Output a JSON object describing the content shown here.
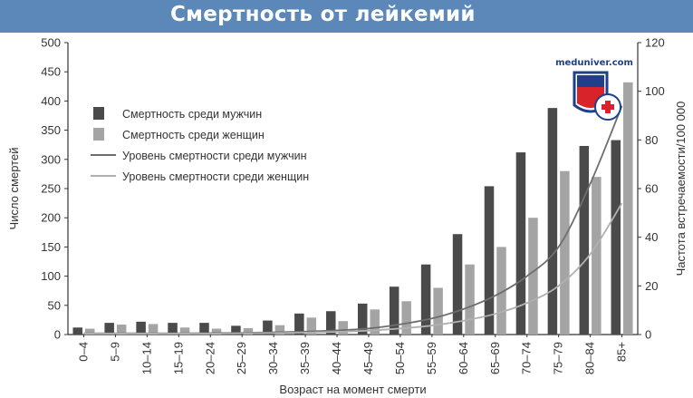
{
  "header": {
    "title": "Смертность от лейкемий"
  },
  "watermark": {
    "text": "meduniver.com"
  },
  "colors": {
    "banner": "#5b87b9",
    "men_bar": "#4a4a4a",
    "women_bar": "#a4a4a4",
    "men_line": "#6e6e6e",
    "women_line": "#b0b0b0"
  },
  "chart_data": {
    "type": "bar",
    "title": "",
    "xlabel": "Возраст на момент смерти",
    "ylabel": "Число смертей",
    "y2label": "Частота встречаемости/100 000",
    "ylim": [
      0,
      500
    ],
    "y2lim": [
      0,
      120
    ],
    "yticks": [
      "0",
      "50",
      "100",
      "150",
      "200",
      "250",
      "300",
      "350",
      "400",
      "450",
      "500"
    ],
    "y2ticks": [
      "0",
      "20",
      "40",
      "60",
      "80",
      "100",
      "120"
    ],
    "grid": false,
    "legend_position": "top-left",
    "categories": [
      "0–4",
      "5–9",
      "10–14",
      "15–19",
      "20–24",
      "25–29",
      "30–34",
      "35–39",
      "40–44",
      "45–49",
      "50–54",
      "55–59",
      "60–64",
      "65–69",
      "70–74",
      "75–79",
      "80–84",
      "85+"
    ],
    "series": [
      {
        "name": "Смертность среди мужчин",
        "kind": "bar",
        "axis": "left",
        "values": [
          12,
          20,
          22,
          20,
          20,
          15,
          24,
          36,
          40,
          53,
          82,
          120,
          172,
          254,
          312,
          388,
          323,
          333
        ]
      },
      {
        "name": "Смертность среди женщин",
        "kind": "bar",
        "axis": "left",
        "values": [
          10,
          17,
          18,
          12,
          10,
          11,
          16,
          29,
          23,
          43,
          57,
          80,
          120,
          150,
          200,
          280,
          270,
          432
        ]
      },
      {
        "name": "Уровень смертности среди мужчин",
        "kind": "line",
        "axis": "right",
        "values": [
          0.5,
          0.5,
          0.5,
          0.5,
          0.6,
          0.7,
          0.9,
          1.2,
          1.7,
          2.5,
          4.2,
          6.6,
          10.5,
          16,
          24,
          36,
          62,
          94
        ]
      },
      {
        "name": "Уровень смертности среди женщин",
        "kind": "line",
        "axis": "right",
        "values": [
          0.4,
          0.4,
          0.4,
          0.4,
          0.4,
          0.5,
          0.6,
          0.8,
          1.1,
          1.6,
          2.5,
          3.7,
          5.7,
          8.5,
          13,
          20,
          33,
          54
        ]
      }
    ]
  }
}
